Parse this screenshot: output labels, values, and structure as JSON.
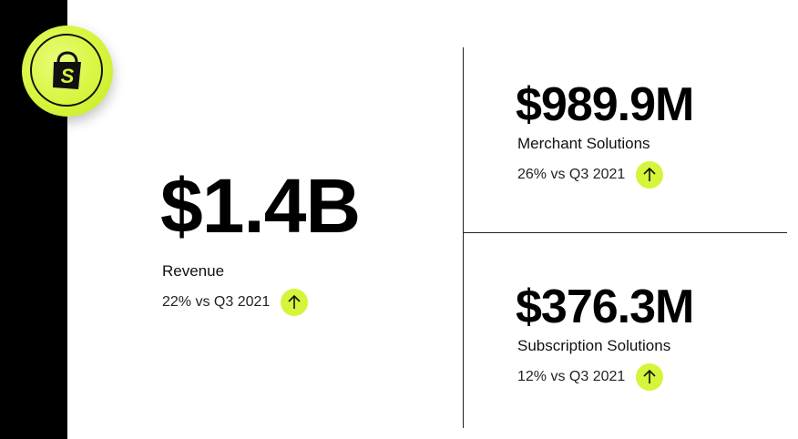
{
  "brand": {
    "accent_color": "#d4f53a",
    "logo_icon": "shopify-bag-icon"
  },
  "revenue": {
    "value": "$1.4B",
    "label": "Revenue",
    "growth": "22% vs Q3 2021"
  },
  "merchant_solutions": {
    "value": "$989.9M",
    "label": "Merchant Solutions",
    "growth": "26% vs Q3 2021"
  },
  "subscription_solutions": {
    "value": "$376.3M",
    "label": "Subscription Solutions",
    "growth": "12% vs Q3 2021"
  },
  "icons": {
    "growth_arrow": "arrow-up-icon"
  }
}
